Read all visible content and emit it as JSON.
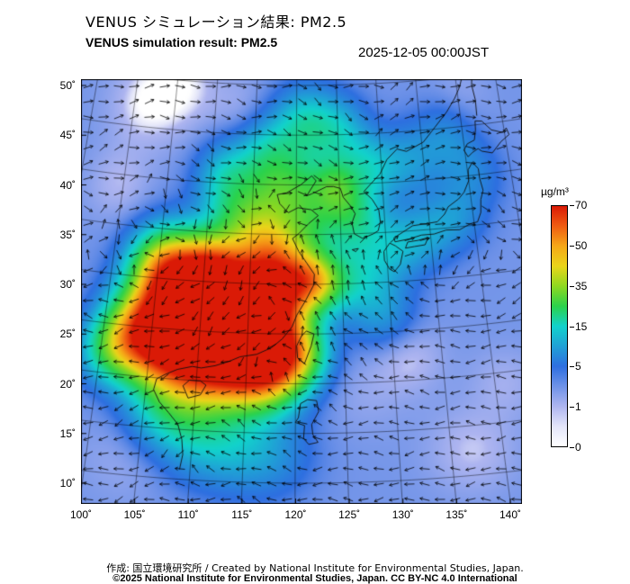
{
  "header": {
    "title_ja": "VENUS シミュレーション結果: PM2.5",
    "title_en": "VENUS simulation result: PM2.5",
    "timestamp": "2025-12-05 00:00JST"
  },
  "axes": {
    "lat_labels": [
      "50˚",
      "45˚",
      "40˚",
      "35˚",
      "30˚",
      "25˚",
      "20˚",
      "15˚",
      "10˚"
    ],
    "lon_labels": [
      "100˚",
      "105˚",
      "110˚",
      "115˚",
      "120˚",
      "125˚",
      "130˚",
      "135˚",
      "140˚"
    ]
  },
  "colorbar": {
    "unit": "µg/m³",
    "tick_labels": [
      "70",
      "50",
      "35",
      "15",
      "5",
      "1",
      "0"
    ],
    "stops": [
      {
        "frac": 0.0,
        "color": "#ffffff"
      },
      {
        "frac": 0.085,
        "color": "#e2e4f9"
      },
      {
        "frac": 0.167,
        "color": "#aeb5f0"
      },
      {
        "frac": 0.333,
        "color": "#2e6fe0"
      },
      {
        "frac": 0.5,
        "color": "#12d2cc"
      },
      {
        "frac": 0.583,
        "color": "#2bd24b"
      },
      {
        "frac": 0.667,
        "color": "#8fd820"
      },
      {
        "frac": 0.75,
        "color": "#ead51a"
      },
      {
        "frac": 0.833,
        "color": "#f6a818"
      },
      {
        "frac": 0.917,
        "color": "#ef5c12"
      },
      {
        "frac": 1.0,
        "color": "#da1a06"
      }
    ]
  },
  "footer": {
    "credit": "作成: 国立環境研究所 / Created by National Institute for Environmental Studies, Japan.",
    "copyright": "©2025 National Institute for Environmental Studies, Japan. CC BY-NC 4.0 International"
  },
  "chart_data": {
    "type": "heatmap",
    "title": "VENUS simulation result: PM2.5",
    "unit": "µg/m³",
    "timestamp": "2025-12-05 00:00JST",
    "lon_ticks": [
      100,
      105,
      110,
      115,
      120,
      125,
      130,
      135,
      140
    ],
    "lat_ticks": [
      50,
      45,
      40,
      35,
      30,
      25,
      20,
      15,
      10
    ],
    "scale_breaks": [
      0,
      1,
      5,
      15,
      35,
      50,
      70
    ],
    "overlay": "wind vector arrows",
    "projection": {
      "center_lon": 120.6,
      "cone": 0.35,
      "pole": 170,
      "lat_top": 50.63,
      "sx": 12.04,
      "sy": 11.05
    },
    "base_value": 2.8,
    "field_model": "gaussian blobs [lon,lat,sigma_deg,amplitude_ugm3] added to base_value",
    "blobs": [
      [
        111.5,
        26.5,
        4.2,
        62
      ],
      [
        108,
        28.5,
        3.0,
        46
      ],
      [
        107,
        23.5,
        3.0,
        50
      ],
      [
        113,
        22.5,
        3.2,
        52
      ],
      [
        116,
        26.5,
        3.0,
        46
      ],
      [
        117.5,
        29.5,
        2.6,
        36
      ],
      [
        111,
        30.5,
        2.6,
        34
      ],
      [
        105.5,
        31.5,
        2.4,
        26
      ],
      [
        117,
        21,
        2.4,
        32
      ],
      [
        119.5,
        23,
        2.2,
        34
      ],
      [
        119,
        32.5,
        2.6,
        20
      ],
      [
        121.5,
        30.3,
        1.8,
        26
      ],
      [
        123.5,
        30.2,
        2.0,
        12
      ],
      [
        116.5,
        34.5,
        2.6,
        16
      ],
      [
        114,
        36.5,
        2.6,
        13
      ],
      [
        118,
        38.5,
        2.4,
        12
      ],
      [
        121,
        39.5,
        2.2,
        11
      ],
      [
        124.5,
        40,
        1.8,
        13
      ],
      [
        126.5,
        36.5,
        2.4,
        14
      ],
      [
        128.5,
        41.5,
        2.2,
        9
      ],
      [
        117,
        42.5,
        2.6,
        14
      ],
      [
        112,
        40.5,
        2.4,
        11
      ],
      [
        104,
        25,
        2.6,
        28
      ],
      [
        101.5,
        22.5,
        2.2,
        18
      ],
      [
        108,
        17,
        2.8,
        14
      ],
      [
        112,
        14,
        3.0,
        8
      ],
      [
        117,
        13,
        3.0,
        6
      ],
      [
        131,
        33.5,
        2.2,
        7
      ],
      [
        134.5,
        34.5,
        2.2,
        6
      ],
      [
        138,
        36,
        2.2,
        5
      ],
      [
        140.5,
        40,
        2.5,
        4
      ],
      [
        127,
        31,
        2.5,
        8
      ],
      [
        129,
        27,
        2.5,
        6
      ],
      [
        122,
        36,
        2.0,
        8
      ],
      [
        125,
        38.5,
        2.0,
        6
      ],
      [
        133,
        42,
        2.5,
        6
      ],
      [
        138,
        44,
        2.5,
        5
      ],
      [
        121,
        46,
        2.5,
        12
      ],
      [
        125,
        45,
        2.5,
        10
      ],
      [
        101.5,
        47.5,
        3.2,
        -2.6
      ],
      [
        106,
        49.5,
        3.0,
        -2.2
      ],
      [
        99.5,
        39,
        2.5,
        -1.8
      ],
      [
        131.5,
        22.5,
        2.5,
        -2.2
      ],
      [
        137,
        12.5,
        3.0,
        -2.0
      ],
      [
        141,
        19,
        2.5,
        -1.4
      ],
      [
        140,
        47.5,
        2.5,
        -1.2
      ],
      [
        113,
        47.5,
        2.5,
        -1.2
      ],
      [
        104,
        12,
        3.0,
        -1.2
      ],
      [
        127,
        19,
        3.0,
        -0.9
      ]
    ],
    "wind": {
      "grid_step": 17,
      "arrow_len": 11,
      "westerly_amp": 1.3,
      "westerly_lat0": 32,
      "westerly_width": 6,
      "noise": 0.45,
      "vortices": [
        {
          "lon": 118,
          "lat": 29,
          "s": 1.6,
          "r": 6
        },
        {
          "lon": 128,
          "lat": 44,
          "s": 1.1,
          "r": 5
        },
        {
          "lon": 136,
          "lat": 32,
          "s": -0.9,
          "r": 6
        },
        {
          "lon": 104,
          "lat": 44,
          "s": -0.7,
          "r": 5
        },
        {
          "lon": 110,
          "lat": 15,
          "s": 0.8,
          "r": 5
        }
      ]
    },
    "coastlines": [
      [
        [
          109.0,
          11.0
        ],
        [
          109.2,
          12.5
        ],
        [
          109.0,
          14.0
        ],
        [
          108.5,
          15.5
        ],
        [
          107.5,
          16.6
        ],
        [
          106.5,
          17.6
        ],
        [
          105.8,
          18.8
        ],
        [
          106.0,
          19.9
        ],
        [
          106.8,
          20.4
        ],
        [
          108.0,
          21.0
        ],
        [
          109.5,
          21.4
        ],
        [
          110.4,
          21.3
        ],
        [
          111.8,
          21.6
        ],
        [
          113.2,
          22.1
        ],
        [
          114.3,
          22.6
        ],
        [
          116.0,
          22.9
        ],
        [
          117.5,
          23.6
        ],
        [
          118.6,
          24.5
        ],
        [
          119.6,
          25.7
        ],
        [
          120.1,
          26.9
        ],
        [
          121.0,
          28.3
        ],
        [
          121.9,
          29.9
        ],
        [
          122.0,
          31.0
        ],
        [
          121.2,
          32.1
        ],
        [
          120.3,
          33.3
        ],
        [
          119.6,
          34.6
        ],
        [
          120.3,
          35.1
        ],
        [
          121.4,
          36.1
        ],
        [
          122.5,
          36.9
        ],
        [
          121.7,
          37.5
        ],
        [
          120.2,
          37.7
        ],
        [
          119.1,
          37.2
        ],
        [
          118.1,
          38.1
        ],
        [
          117.8,
          39.0
        ],
        [
          118.9,
          39.2
        ],
        [
          120.5,
          40.0
        ],
        [
          121.8,
          40.9
        ],
        [
          122.3,
          40.4
        ],
        [
          121.2,
          38.9
        ],
        [
          121.8,
          39.1
        ],
        [
          123.5,
          39.8
        ],
        [
          124.3,
          39.8
        ]
      ],
      [
        [
          124.3,
          39.8
        ],
        [
          125.1,
          39.6
        ],
        [
          125.4,
          38.7
        ],
        [
          126.2,
          37.8
        ],
        [
          126.7,
          37.0
        ],
        [
          126.3,
          36.1
        ],
        [
          126.5,
          35.0
        ],
        [
          127.4,
          34.5
        ],
        [
          128.6,
          34.9
        ],
        [
          129.2,
          35.2
        ],
        [
          129.5,
          36.1
        ],
        [
          129.4,
          37.3
        ],
        [
          128.7,
          38.4
        ],
        [
          127.8,
          39.2
        ],
        [
          128.6,
          39.9
        ],
        [
          129.8,
          40.9
        ],
        [
          130.7,
          42.3
        ]
      ],
      [
        [
          130.7,
          42.3
        ],
        [
          132.0,
          43.3
        ],
        [
          133.1,
          43.0
        ],
        [
          135.2,
          43.8
        ],
        [
          136.9,
          45.3
        ],
        [
          138.4,
          46.6
        ],
        [
          139.6,
          47.9
        ],
        [
          140.4,
          49.0
        ],
        [
          141.0,
          50.3
        ]
      ],
      [
        [
          131.0,
          34.0
        ],
        [
          132.6,
          34.2
        ],
        [
          134.0,
          34.5
        ],
        [
          135.4,
          34.5
        ],
        [
          136.8,
          34.8
        ],
        [
          138.3,
          34.7
        ],
        [
          139.6,
          35.2
        ],
        [
          140.4,
          35.3
        ],
        [
          140.9,
          36.2
        ],
        [
          141.1,
          37.5
        ],
        [
          141.5,
          38.4
        ],
        [
          141.3,
          39.6
        ],
        [
          141.3,
          40.6
        ],
        [
          140.7,
          41.3
        ],
        [
          140.1,
          40.6
        ],
        [
          140.0,
          39.5
        ],
        [
          139.3,
          38.4
        ],
        [
          138.6,
          37.8
        ],
        [
          137.3,
          37.1
        ],
        [
          136.8,
          36.4
        ],
        [
          135.9,
          35.7
        ],
        [
          134.5,
          35.6
        ],
        [
          133.1,
          35.5
        ],
        [
          131.9,
          34.9
        ],
        [
          130.9,
          34.4
        ],
        [
          131.0,
          34.0
        ]
      ],
      [
        [
          130.2,
          31.3
        ],
        [
          129.7,
          32.2
        ],
        [
          129.7,
          33.1
        ],
        [
          130.4,
          33.9
        ],
        [
          131.0,
          33.6
        ],
        [
          131.8,
          33.0
        ],
        [
          131.4,
          31.7
        ],
        [
          130.7,
          31.0
        ],
        [
          130.2,
          31.3
        ]
      ],
      [
        [
          132.1,
          33.3
        ],
        [
          133.1,
          33.4
        ],
        [
          134.3,
          33.5
        ],
        [
          134.7,
          34.2
        ],
        [
          133.6,
          34.0
        ],
        [
          132.4,
          33.9
        ],
        [
          132.1,
          33.3
        ]
      ],
      [
        [
          140.3,
          41.9
        ],
        [
          139.9,
          42.6
        ],
        [
          140.4,
          43.2
        ],
        [
          141.3,
          43.5
        ],
        [
          141.6,
          44.5
        ],
        [
          141.7,
          45.4
        ],
        [
          142.5,
          45.3
        ],
        [
          143.5,
          44.3
        ],
        [
          144.8,
          43.9
        ],
        [
          145.3,
          44.3
        ],
        [
          145.5,
          43.6
        ],
        [
          144.4,
          43.0
        ],
        [
          143.2,
          42.0
        ],
        [
          142.0,
          42.3
        ],
        [
          141.6,
          42.6
        ],
        [
          140.9,
          42.3
        ],
        [
          140.3,
          41.9
        ]
      ],
      [
        [
          142.0,
          45.9
        ],
        [
          142.1,
          47.5
        ],
        [
          141.9,
          49.0
        ],
        [
          142.2,
          50.5
        ]
      ],
      [
        [
          121.1,
          25.3
        ],
        [
          121.9,
          25.0
        ],
        [
          121.6,
          23.8
        ],
        [
          120.9,
          22.0
        ],
        [
          120.2,
          22.6
        ],
        [
          120.1,
          23.8
        ],
        [
          120.6,
          24.8
        ],
        [
          121.1,
          25.3
        ]
      ],
      [
        [
          108.7,
          19.4
        ],
        [
          109.3,
          20.0
        ],
        [
          110.4,
          20.0
        ],
        [
          111.0,
          19.6
        ],
        [
          110.5,
          18.6
        ],
        [
          109.3,
          18.2
        ],
        [
          108.7,
          19.4
        ]
      ],
      [
        [
          120.0,
          16.1
        ],
        [
          120.3,
          16.6
        ],
        [
          120.5,
          18.0
        ],
        [
          121.2,
          18.4
        ],
        [
          122.1,
          18.3
        ],
        [
          122.3,
          17.2
        ],
        [
          121.6,
          15.9
        ],
        [
          121.7,
          14.9
        ],
        [
          122.2,
          14.1
        ],
        [
          121.3,
          13.9
        ],
        [
          120.8,
          14.5
        ],
        [
          120.9,
          15.8
        ],
        [
          120.0,
          16.1
        ]
      ],
      [
        [
          126.2,
          33.4
        ],
        [
          126.9,
          33.5
        ],
        [
          126.6,
          33.2
        ],
        [
          126.2,
          33.4
        ]
      ]
    ]
  }
}
